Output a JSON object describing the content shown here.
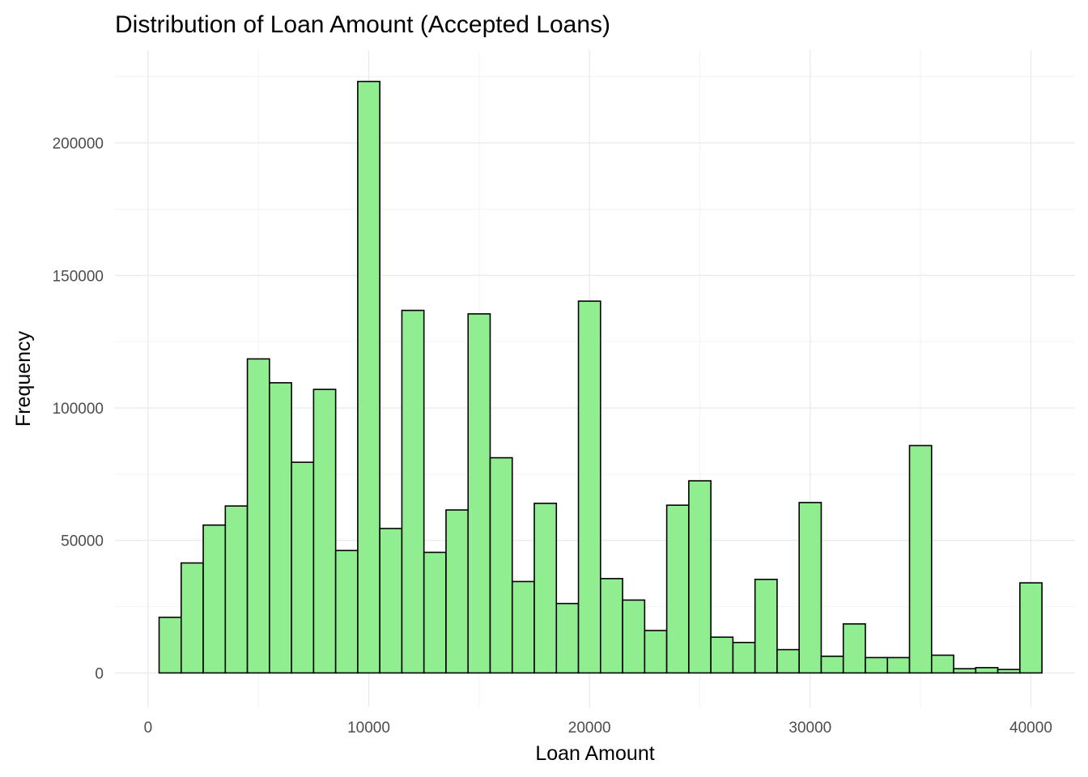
{
  "chart_data": {
    "type": "bar",
    "title": "Distribution of Loan Amount (Accepted Loans)",
    "xlabel": "Loan Amount",
    "ylabel": "Frequency",
    "xlim": [
      -1500,
      42000
    ],
    "ylim": [
      -13000,
      235000
    ],
    "bin_width": 1000,
    "bins": [
      {
        "start": 500,
        "end": 1500,
        "value": 21000
      },
      {
        "start": 1500,
        "end": 2500,
        "value": 41500
      },
      {
        "start": 2500,
        "end": 3500,
        "value": 55800
      },
      {
        "start": 3500,
        "end": 4500,
        "value": 63000
      },
      {
        "start": 4500,
        "end": 5500,
        "value": 118500
      },
      {
        "start": 5500,
        "end": 6500,
        "value": 109500
      },
      {
        "start": 6500,
        "end": 7500,
        "value": 79500
      },
      {
        "start": 7500,
        "end": 8500,
        "value": 107000
      },
      {
        "start": 8500,
        "end": 9500,
        "value": 46200
      },
      {
        "start": 9500,
        "end": 10500,
        "value": 223200
      },
      {
        "start": 10500,
        "end": 11500,
        "value": 54500
      },
      {
        "start": 11500,
        "end": 12500,
        "value": 136800
      },
      {
        "start": 12500,
        "end": 13500,
        "value": 45500
      },
      {
        "start": 13500,
        "end": 14500,
        "value": 61500
      },
      {
        "start": 14500,
        "end": 15500,
        "value": 135500
      },
      {
        "start": 15500,
        "end": 16500,
        "value": 81200
      },
      {
        "start": 16500,
        "end": 17500,
        "value": 34500
      },
      {
        "start": 17500,
        "end": 18500,
        "value": 64000
      },
      {
        "start": 18500,
        "end": 19500,
        "value": 26200
      },
      {
        "start": 19500,
        "end": 20500,
        "value": 140300
      },
      {
        "start": 20500,
        "end": 21500,
        "value": 35600
      },
      {
        "start": 21500,
        "end": 22500,
        "value": 27500
      },
      {
        "start": 22500,
        "end": 23500,
        "value": 16000
      },
      {
        "start": 23500,
        "end": 24500,
        "value": 63300
      },
      {
        "start": 24500,
        "end": 25500,
        "value": 72500
      },
      {
        "start": 25500,
        "end": 26500,
        "value": 13500
      },
      {
        "start": 26500,
        "end": 27500,
        "value": 11500
      },
      {
        "start": 27500,
        "end": 28500,
        "value": 35300
      },
      {
        "start": 28500,
        "end": 29500,
        "value": 8800
      },
      {
        "start": 29500,
        "end": 30500,
        "value": 64300
      },
      {
        "start": 30500,
        "end": 31500,
        "value": 6300
      },
      {
        "start": 31500,
        "end": 32500,
        "value": 18500
      },
      {
        "start": 32500,
        "end": 33500,
        "value": 5800
      },
      {
        "start": 33500,
        "end": 34500,
        "value": 5800
      },
      {
        "start": 34500,
        "end": 35500,
        "value": 85800
      },
      {
        "start": 35500,
        "end": 36500,
        "value": 6700
      },
      {
        "start": 36500,
        "end": 37500,
        "value": 1600
      },
      {
        "start": 37500,
        "end": 38500,
        "value": 2000
      },
      {
        "start": 38500,
        "end": 39500,
        "value": 1300
      },
      {
        "start": 39500,
        "end": 40500,
        "value": 34000
      }
    ],
    "x_ticks": [
      0,
      10000,
      20000,
      30000,
      40000
    ],
    "x_tick_labels": [
      "0",
      "10000",
      "20000",
      "30000",
      "40000"
    ],
    "y_ticks": [
      0,
      50000,
      100000,
      150000,
      200000
    ],
    "y_tick_labels": [
      "0",
      "50000",
      "100000",
      "150000",
      "200000"
    ],
    "grid": true,
    "colors": {
      "bar_fill": "#90ee90",
      "bar_stroke": "#000000",
      "grid": "#ebebeb",
      "tick_text": "#4d4d4d"
    }
  }
}
